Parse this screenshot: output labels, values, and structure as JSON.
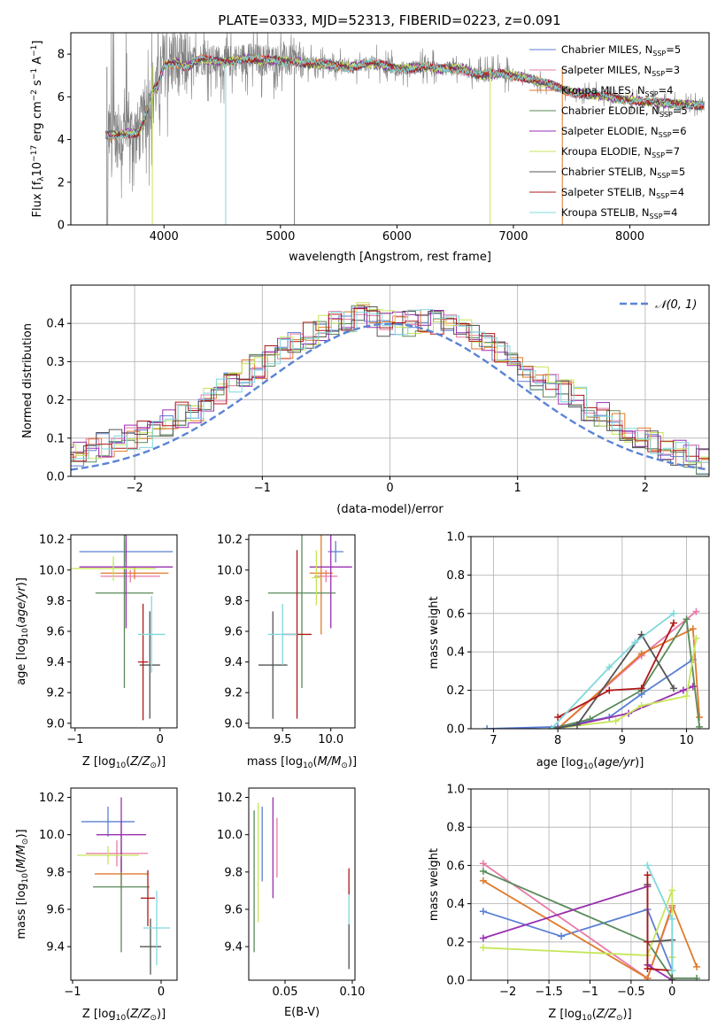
{
  "figure": {
    "title": "PLATE=0333, MJD=52313, FIBERID=0223, z=0.091"
  },
  "colors": {
    "chabrier_miles": "#5b7fd4",
    "salpeter_miles": "#e879a8",
    "kroupa_miles": "#e07a2a",
    "chabrier_elodie": "#5a8a5a",
    "salpeter_elodie": "#9a2fb0",
    "kroupa_elodie": "#c6e65a",
    "chabrier_stelib": "#555555",
    "salpeter_stelib": "#b01818",
    "kroupa_stelib": "#7fd8dc",
    "data_spectrum": "#808080",
    "normal_curve": "#5b84d6"
  },
  "chart_data": [
    {
      "id": "spectrum",
      "type": "line",
      "xlabel": "wavelength [Angstrom, rest frame]",
      "ylabel": "Flux [f_λ 10^-17 erg cm^-2 s^-1 A^-1]",
      "xlim": [
        3200,
        8680
      ],
      "ylim": [
        0,
        9
      ],
      "xticks": [
        4000,
        5000,
        6000,
        7000,
        8000
      ],
      "yticks": [
        0,
        2,
        4,
        6,
        8
      ],
      "legend_position": "right",
      "legend": [
        "Chabrier MILES, N_SSP=5",
        "Salpeter MILES, N_SSP=3",
        "Kroupa MILES, N_SSP=4",
        "Chabrier ELODIE, N_SSP=5",
        "Salpeter ELODIE, N_SSP=6",
        "Kroupa ELODIE, N_SSP=7",
        "Chabrier STELIB, N_SSP=5",
        "Salpeter STELIB, N_SSP=4",
        "Kroupa STELIB, N_SSP=4"
      ],
      "continuum": {
        "x": [
          3500,
          3600,
          3700,
          3780,
          3850,
          3900,
          3950,
          4000,
          4100,
          4200,
          4300,
          4500,
          4700,
          4860,
          5000,
          5200,
          5400,
          5600,
          5800,
          6000,
          6200,
          6400,
          6563,
          6700,
          6900,
          7100,
          7300,
          7500,
          7700,
          7900,
          8100,
          8300,
          8640
        ],
        "y": [
          4.2,
          4.2,
          4.3,
          4.3,
          5.2,
          6.3,
          6.5,
          7.5,
          7.6,
          7.4,
          7.8,
          7.6,
          7.8,
          7.7,
          7.7,
          7.6,
          7.5,
          7.4,
          7.6,
          7.3,
          7.4,
          7.3,
          7.3,
          7.0,
          7.1,
          6.9,
          6.6,
          6.2,
          6.1,
          5.9,
          5.8,
          5.7,
          5.6
        ]
      }
    },
    {
      "id": "residual_hist",
      "type": "bar",
      "xlabel": "(data-model)/error",
      "ylabel": "Normed distribution",
      "xlim": [
        -2.5,
        2.5
      ],
      "ylim": [
        0,
        0.5
      ],
      "xticks": [
        -2,
        -1,
        0,
        1,
        2
      ],
      "yticks": [
        0.0,
        0.1,
        0.2,
        0.3,
        0.4
      ],
      "legend": [
        "N(0,1)"
      ],
      "bin_width": 0.1,
      "mean_histogram": [
        0.02,
        0.025,
        0.03,
        0.038,
        0.048,
        0.06,
        0.07,
        0.08,
        0.09,
        0.1,
        0.11,
        0.125,
        0.14,
        0.16,
        0.17,
        0.2,
        0.22,
        0.25,
        0.27,
        0.29,
        0.31,
        0.33,
        0.35,
        0.37,
        0.39,
        0.4,
        0.41,
        0.42,
        0.41,
        0.4,
        0.4,
        0.4,
        0.41,
        0.4,
        0.39,
        0.38,
        0.36,
        0.34,
        0.32,
        0.3,
        0.28,
        0.26,
        0.24,
        0.22,
        0.2,
        0.18,
        0.16,
        0.14,
        0.12,
        0.1,
        0.085,
        0.07,
        0.06,
        0.05,
        0.04,
        0.035,
        0.03,
        0.025,
        0.022,
        0.02
      ]
    },
    {
      "id": "age_vs_Z",
      "type": "scatter",
      "xlabel": "Z [log10(Z/Z⊙)]",
      "ylabel": "age [log10(age/yr)]",
      "xlim": [
        -1.05,
        0.2
      ],
      "ylim": [
        8.97,
        10.23
      ],
      "xticks": [
        -1,
        0
      ],
      "yticks": [
        9.0,
        9.2,
        9.4,
        9.6,
        9.8,
        10.0,
        10.2
      ],
      "points": [
        {
          "model": "chabrier_miles",
          "x": -0.4,
          "xerr": 0.55,
          "y": 10.12,
          "yerr": 0.07
        },
        {
          "model": "salpeter_miles",
          "x": -0.35,
          "xerr": 0.35,
          "y": 9.96,
          "yerr": 0.04
        },
        {
          "model": "kroupa_miles",
          "x": -0.3,
          "xerr": 0.4,
          "y": 9.98,
          "yerr": 0.04
        },
        {
          "model": "chabrier_elodie",
          "x": -0.42,
          "xerr": 0.34,
          "y": 9.85,
          "yerr": 0.62
        },
        {
          "model": "salpeter_elodie",
          "x": -0.4,
          "xerr": 0.55,
          "y": 10.02,
          "yerr": 0.4
        },
        {
          "model": "kroupa_elodie",
          "x": -0.55,
          "xerr": 0.5,
          "y": 10.01,
          "yerr": 0.08
        },
        {
          "model": "chabrier_stelib",
          "x": -0.12,
          "xerr": 0.12,
          "y": 9.38,
          "yerr": 0.35
        },
        {
          "model": "salpeter_stelib",
          "x": -0.2,
          "xerr": 0.06,
          "y": 9.4,
          "yerr": 0.38
        },
        {
          "model": "kroupa_stelib",
          "x": -0.1,
          "xerr": 0.16,
          "y": 9.58,
          "yerr": 0.25
        }
      ]
    },
    {
      "id": "age_vs_mass",
      "type": "scatter",
      "xlabel": "mass [log10(M/M⊙)]",
      "ylabel": "",
      "xlim": [
        9.15,
        10.25
      ],
      "ylim": [
        8.97,
        10.23
      ],
      "xticks": [
        9.5,
        10.0
      ],
      "yticks": [
        9.0,
        9.2,
        9.4,
        9.6,
        9.8,
        10.0,
        10.2
      ],
      "points": [
        {
          "model": "chabrier_miles",
          "x": 10.05,
          "xerr": 0.08,
          "y": 10.12,
          "yerr": 0.07
        },
        {
          "model": "salpeter_miles",
          "x": 9.95,
          "xerr": 0.12,
          "y": 9.96,
          "yerr": 0.04
        },
        {
          "model": "kroupa_miles",
          "x": 9.9,
          "xerr": 0.12,
          "y": 9.98,
          "yerr": 0.4
        },
        {
          "model": "chabrier_elodie",
          "x": 9.7,
          "xerr": 0.35,
          "y": 9.85,
          "yerr": 0.62
        },
        {
          "model": "salpeter_elodie",
          "x": 10.0,
          "xerr": 0.22,
          "y": 10.02,
          "yerr": 0.4
        },
        {
          "model": "kroupa_elodie",
          "x": 9.85,
          "xerr": 0.05,
          "y": 9.95,
          "yerr": 0.18
        },
        {
          "model": "chabrier_stelib",
          "x": 9.4,
          "xerr": 0.15,
          "y": 9.38,
          "yerr": 0.35
        },
        {
          "model": "salpeter_stelib",
          "x": 9.65,
          "xerr": 0.15,
          "y": 9.58,
          "yerr": 0.55
        },
        {
          "model": "kroupa_stelib",
          "x": 9.5,
          "xerr": 0.15,
          "y": 9.58,
          "yerr": 0.2
        }
      ]
    },
    {
      "id": "massweight_vs_age",
      "type": "line",
      "xlabel": "age [log10(age/yr)]",
      "ylabel": "mass weight",
      "xlim": [
        6.65,
        10.35
      ],
      "ylim": [
        0,
        1.0
      ],
      "xticks": [
        7,
        8,
        9,
        10
      ],
      "yticks": [
        0.0,
        0.2,
        0.4,
        0.6,
        0.8,
        1.0
      ],
      "series": [
        {
          "model": "chabrier_miles",
          "x": [
            6.9,
            8.0,
            8.8,
            9.3,
            10.1
          ],
          "y": [
            0.0,
            0.01,
            0.06,
            0.18,
            0.36
          ]
        },
        {
          "model": "salpeter_miles",
          "x": [
            8.0,
            9.3,
            10.15
          ],
          "y": [
            0.0,
            0.38,
            0.61
          ]
        },
        {
          "model": "kroupa_miles",
          "x": [
            8.0,
            9.3,
            10.1,
            10.2
          ],
          "y": [
            0.0,
            0.39,
            0.52,
            0.06
          ]
        },
        {
          "model": "chabrier_elodie",
          "x": [
            7.9,
            8.5,
            9.3,
            10.0,
            10.2
          ],
          "y": [
            0.0,
            0.05,
            0.2,
            0.57,
            0.01
          ]
        },
        {
          "model": "salpeter_elodie",
          "x": [
            8.0,
            9.1,
            9.95,
            10.1
          ],
          "y": [
            0.0,
            0.08,
            0.2,
            0.22
          ]
        },
        {
          "model": "kroupa_elodie",
          "x": [
            7.9,
            8.9,
            9.3,
            10.0,
            10.15
          ],
          "y": [
            0.0,
            0.04,
            0.12,
            0.17,
            0.47
          ]
        },
        {
          "model": "chabrier_stelib",
          "x": [
            7.9,
            8.3,
            9.3,
            9.8
          ],
          "y": [
            0.0,
            0.02,
            0.49,
            0.21
          ]
        },
        {
          "model": "salpeter_stelib",
          "x": [
            8.0,
            8.8,
            9.3,
            9.8
          ],
          "y": [
            0.06,
            0.2,
            0.21,
            0.55
          ]
        },
        {
          "model": "kroupa_stelib",
          "x": [
            7.9,
            8.8,
            9.2,
            9.8
          ],
          "y": [
            0.0,
            0.32,
            0.45,
            0.6
          ]
        }
      ]
    },
    {
      "id": "mass_vs_Z",
      "type": "scatter",
      "xlabel": "Z [log10(Z/Z⊙)]",
      "ylabel": "mass [log10(M/M⊙)]",
      "xlim": [
        -1.02,
        0.18
      ],
      "ylim": [
        9.22,
        10.25
      ],
      "xticks": [
        -1,
        0
      ],
      "yticks": [
        9.4,
        9.6,
        9.8,
        10.0,
        10.2
      ],
      "points": [
        {
          "model": "chabrier_miles",
          "x": -0.6,
          "xerr": 0.3,
          "y": 10.07,
          "yerr": 0.08
        },
        {
          "model": "salpeter_miles",
          "x": -0.5,
          "xerr": 0.35,
          "y": 9.9,
          "yerr": 0.07
        },
        {
          "model": "kroupa_miles",
          "x": -0.45,
          "xerr": 0.3,
          "y": 9.79,
          "yerr": 0.08
        },
        {
          "model": "chabrier_elodie",
          "x": -0.45,
          "xerr": 0.32,
          "y": 9.72,
          "yerr": 0.35
        },
        {
          "model": "salpeter_elodie",
          "x": -0.45,
          "xerr": 0.28,
          "y": 10.0,
          "yerr": 0.2
        },
        {
          "model": "kroupa_elodie",
          "x": -0.6,
          "xerr": 0.35,
          "y": 9.89,
          "yerr": 0.05
        },
        {
          "model": "chabrier_stelib",
          "x": -0.12,
          "xerr": 0.12,
          "y": 9.4,
          "yerr": 0.15
        },
        {
          "model": "salpeter_stelib",
          "x": -0.15,
          "xerr": 0.08,
          "y": 9.66,
          "yerr": 0.15
        },
        {
          "model": "kroupa_stelib",
          "x": -0.05,
          "xerr": 0.15,
          "y": 9.5,
          "yerr": 0.2
        }
      ]
    },
    {
      "id": "mass_vs_EBV",
      "type": "scatter",
      "xlabel": "E(B-V)",
      "ylabel": "",
      "xlim": [
        0.023,
        0.102
      ],
      "ylim": [
        9.22,
        10.25
      ],
      "xticks": [
        0.05,
        0.1
      ],
      "yticks": [
        9.4,
        9.6,
        9.8,
        10.0,
        10.2
      ],
      "points": [
        {
          "model": "chabrier_elodie",
          "x": 0.027,
          "xerr": 0,
          "y": 9.75,
          "yerr": 0.38
        },
        {
          "model": "kroupa_elodie",
          "x": 0.03,
          "xerr": 0,
          "y": 9.85,
          "yerr": 0.32
        },
        {
          "model": "chabrier_miles",
          "x": 0.033,
          "xerr": 0,
          "y": 9.95,
          "yerr": 0.2
        },
        {
          "model": "salpeter_elodie",
          "x": 0.041,
          "xerr": 0,
          "y": 9.93,
          "yerr": 0.27
        },
        {
          "model": "salpeter_miles",
          "x": 0.044,
          "xerr": 0,
          "y": 9.93,
          "yerr": 0.16
        },
        {
          "model": "kroupa_stelib",
          "x": 0.0975,
          "xerr": 0,
          "y": 9.5,
          "yerr": 0.22
        },
        {
          "model": "salpeter_stelib",
          "x": 0.0975,
          "xerr": 0,
          "y": 9.75,
          "yerr": 0.07
        },
        {
          "model": "chabrier_stelib",
          "x": 0.0975,
          "xerr": 0,
          "y": 9.4,
          "yerr": 0.12
        }
      ]
    },
    {
      "id": "massweight_vs_Z",
      "type": "line",
      "xlabel": "Z [log10(Z/Z⊙)]",
      "ylabel": "mass weight",
      "xlim": [
        -2.45,
        0.45
      ],
      "ylim": [
        0,
        1.0
      ],
      "xticks": [
        -2.0,
        -1.5,
        -1.0,
        -0.5,
        0.0
      ],
      "yticks": [
        0.0,
        0.2,
        0.4,
        0.6,
        0.8,
        1.0
      ],
      "series": [
        {
          "model": "chabrier_miles",
          "x": [
            -2.3,
            -1.35,
            -0.3,
            0.0
          ],
          "y": [
            0.36,
            0.23,
            0.37,
            0.05
          ]
        },
        {
          "model": "salpeter_miles",
          "x": [
            -2.3,
            -0.3,
            0.0
          ],
          "y": [
            0.61,
            0.01,
            0.38
          ]
        },
        {
          "model": "kroupa_miles",
          "x": [
            -2.3,
            -0.3,
            0.0,
            0.3
          ],
          "y": [
            0.52,
            0.01,
            0.39,
            0.07
          ]
        },
        {
          "model": "chabrier_elodie",
          "x": [
            -2.3,
            -0.3,
            0.0,
            0.3
          ],
          "y": [
            0.57,
            0.2,
            0.01,
            0.01
          ]
        },
        {
          "model": "salpeter_elodie",
          "x": [
            -2.3,
            -0.3,
            -0.3,
            0.0
          ],
          "y": [
            0.22,
            0.49,
            0.08,
            0.0
          ]
        },
        {
          "model": "kroupa_elodie",
          "x": [
            -2.3,
            -0.3,
            0.0,
            0.0
          ],
          "y": [
            0.17,
            0.13,
            0.47,
            0.12
          ]
        },
        {
          "model": "chabrier_stelib",
          "x": [
            -0.3,
            -0.3,
            0.0,
            0.0
          ],
          "y": [
            0.5,
            0.2,
            0.21,
            0.0
          ]
        },
        {
          "model": "salpeter_stelib",
          "x": [
            -0.3,
            -0.3,
            -0.3,
            0.0
          ],
          "y": [
            0.55,
            0.2,
            0.06,
            0.05
          ]
        },
        {
          "model": "kroupa_stelib",
          "x": [
            -0.3,
            0.0,
            0.0
          ],
          "y": [
            0.6,
            0.32,
            0.05
          ]
        }
      ]
    }
  ]
}
